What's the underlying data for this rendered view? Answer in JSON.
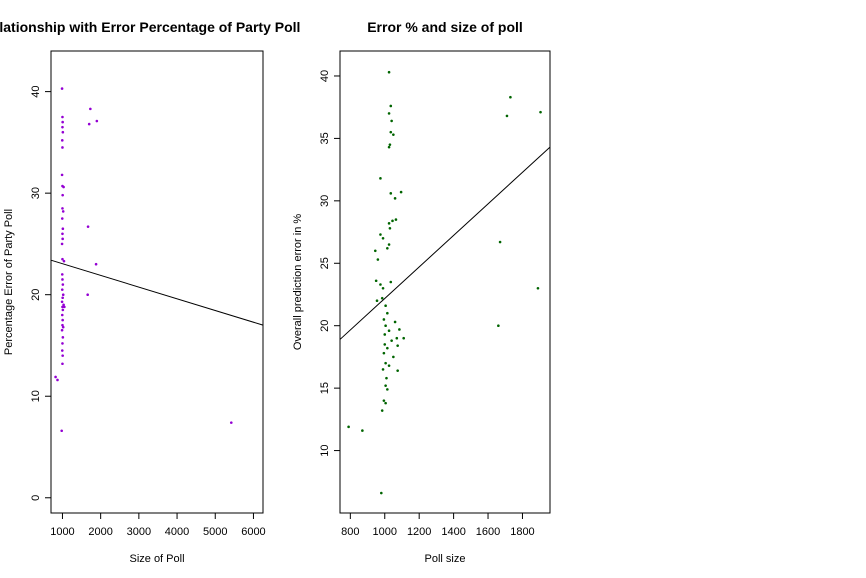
{
  "chart_data": [
    {
      "type": "scatter",
      "title": "Size of Poll relationship with Error Percentage of Party Poll",
      "xlabel": "Size of Poll",
      "ylabel": "Percentage Error of Party Poll",
      "xlim": [
        700,
        6250
      ],
      "ylim": [
        -1.5,
        44
      ],
      "xticks": [
        1000,
        2000,
        3000,
        4000,
        5000,
        6000
      ],
      "yticks": [
        0,
        10,
        20,
        30,
        40
      ],
      "point_color": "#9400D3",
      "fit_line": {
        "x": [
          700,
          6250
        ],
        "y": [
          23.4,
          17.0
        ]
      },
      "points": [
        [
          990,
          40.3
        ],
        [
          1000,
          37.5
        ],
        [
          1005,
          37.0
        ],
        [
          1000,
          36.5
        ],
        [
          1010,
          36.0
        ],
        [
          995,
          35.2
        ],
        [
          1000,
          34.5
        ],
        [
          990,
          31.8
        ],
        [
          1000,
          30.7
        ],
        [
          1030,
          30.6
        ],
        [
          1005,
          29.8
        ],
        [
          1000,
          28.5
        ],
        [
          1020,
          28.2
        ],
        [
          995,
          27.5
        ],
        [
          1010,
          26.5
        ],
        [
          1000,
          26.0
        ],
        [
          1005,
          25.5
        ],
        [
          990,
          25.0
        ],
        [
          1000,
          23.5
        ],
        [
          1040,
          23.3
        ],
        [
          995,
          22.0
        ],
        [
          1000,
          21.5
        ],
        [
          1010,
          21.0
        ],
        [
          995,
          20.5
        ],
        [
          1020,
          20.0
        ],
        [
          1005,
          19.7
        ],
        [
          990,
          19.3
        ],
        [
          1030,
          19.0
        ],
        [
          1000,
          18.8
        ],
        [
          1010,
          18.5
        ],
        [
          1050,
          18.8
        ],
        [
          995,
          18.0
        ],
        [
          1005,
          17.5
        ],
        [
          1000,
          17.0
        ],
        [
          1020,
          16.8
        ],
        [
          990,
          16.5
        ],
        [
          1010,
          15.8
        ],
        [
          1000,
          15.2
        ],
        [
          995,
          14.5
        ],
        [
          1005,
          14.0
        ],
        [
          1000,
          13.2
        ],
        [
          820,
          11.9
        ],
        [
          870,
          11.6
        ],
        [
          980,
          6.6
        ],
        [
          1660,
          20.0
        ],
        [
          1670,
          26.7
        ],
        [
          1700,
          36.8
        ],
        [
          1730,
          38.3
        ],
        [
          1900,
          37.1
        ],
        [
          1880,
          23.0
        ],
        [
          5420,
          7.4
        ]
      ]
    },
    {
      "type": "scatter",
      "title": "Error % and size of poll",
      "xlabel": "Poll size",
      "ylabel": "Overall prediction error in %",
      "xlim": [
        740,
        1960
      ],
      "ylim": [
        5,
        42
      ],
      "xticks": [
        800,
        1000,
        1200,
        1400,
        1600,
        1800
      ],
      "yticks": [
        10,
        15,
        20,
        25,
        30,
        35,
        40
      ],
      "point_color": "#006400",
      "fit_line": {
        "x": [
          740,
          1960
        ],
        "y": [
          18.9,
          34.3
        ]
      },
      "points": [
        [
          1025,
          40.3
        ],
        [
          1035,
          37.6
        ],
        [
          1025,
          37.0
        ],
        [
          1040,
          36.4
        ],
        [
          1035,
          35.5
        ],
        [
          1050,
          35.3
        ],
        [
          1030,
          34.5
        ],
        [
          1025,
          34.3
        ],
        [
          975,
          31.8
        ],
        [
          1035,
          30.6
        ],
        [
          1095,
          30.7
        ],
        [
          1060,
          30.2
        ],
        [
          1045,
          28.4
        ],
        [
          1025,
          28.2
        ],
        [
          1065,
          28.5
        ],
        [
          1030,
          27.8
        ],
        [
          975,
          27.3
        ],
        [
          990,
          27.0
        ],
        [
          1025,
          26.5
        ],
        [
          1015,
          26.2
        ],
        [
          945,
          26.0
        ],
        [
          960,
          25.3
        ],
        [
          1035,
          23.5
        ],
        [
          950,
          23.6
        ],
        [
          975,
          23.3
        ],
        [
          990,
          23.0
        ],
        [
          985,
          22.2
        ],
        [
          955,
          22.0
        ],
        [
          1005,
          21.6
        ],
        [
          1015,
          21.0
        ],
        [
          995,
          20.5
        ],
        [
          1005,
          20.0
        ],
        [
          1060,
          20.3
        ],
        [
          1085,
          19.7
        ],
        [
          1000,
          19.3
        ],
        [
          1025,
          19.6
        ],
        [
          1070,
          19.0
        ],
        [
          1110,
          19.0
        ],
        [
          1040,
          18.8
        ],
        [
          1000,
          18.5
        ],
        [
          1015,
          18.2
        ],
        [
          1075,
          18.4
        ],
        [
          995,
          17.8
        ],
        [
          1050,
          17.5
        ],
        [
          1005,
          17.0
        ],
        [
          1025,
          16.8
        ],
        [
          990,
          16.5
        ],
        [
          1075,
          16.4
        ],
        [
          1010,
          15.8
        ],
        [
          1005,
          15.2
        ],
        [
          1015,
          14.9
        ],
        [
          995,
          14.0
        ],
        [
          1005,
          13.8
        ],
        [
          985,
          13.2
        ],
        [
          790,
          11.9
        ],
        [
          870,
          11.6
        ],
        [
          980,
          6.6
        ],
        [
          1660,
          20.0
        ],
        [
          1670,
          26.7
        ],
        [
          1710,
          36.8
        ],
        [
          1730,
          38.3
        ],
        [
          1905,
          37.1
        ],
        [
          1890,
          23.0
        ]
      ]
    }
  ]
}
